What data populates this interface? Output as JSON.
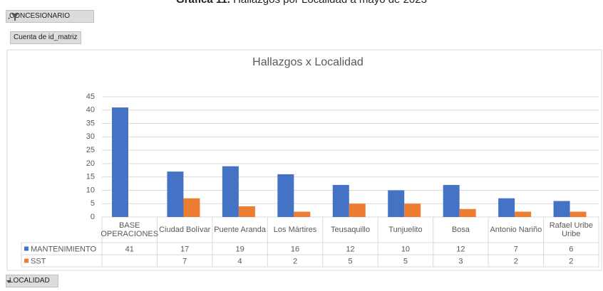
{
  "caption": {
    "label": "Gráfica 11.",
    "text": "Hallazgos por Localidad a mayo de 2023"
  },
  "filters": {
    "report_filter": "CONCESIONARIO",
    "value_field": "Cuenta de id_matriz",
    "axis_field": "LOCALIDAD"
  },
  "chart_data": {
    "type": "bar",
    "title": "Hallazgos x Localidad",
    "categories": [
      "BASE OPERACIONES",
      "Ciudad Bolívar",
      "Puente Aranda",
      "Los Mártires",
      "Teusaquillo",
      "Tunjuelito",
      "Bosa",
      "Antonio Nariño",
      "Rafael Uribe Uribe"
    ],
    "series": [
      {
        "name": "MANTENIMIENTO",
        "color": "#4472c4",
        "values": [
          41,
          17,
          19,
          16,
          12,
          10,
          12,
          7,
          6
        ]
      },
      {
        "name": "SST",
        "color": "#ed7d31",
        "values": [
          null,
          7,
          4,
          2,
          5,
          5,
          3,
          2,
          2
        ]
      }
    ],
    "ylim": [
      0,
      45
    ],
    "yticks": [
      0,
      5,
      10,
      15,
      20,
      25,
      30,
      35,
      40,
      45
    ],
    "grid": true,
    "legend": "table"
  }
}
